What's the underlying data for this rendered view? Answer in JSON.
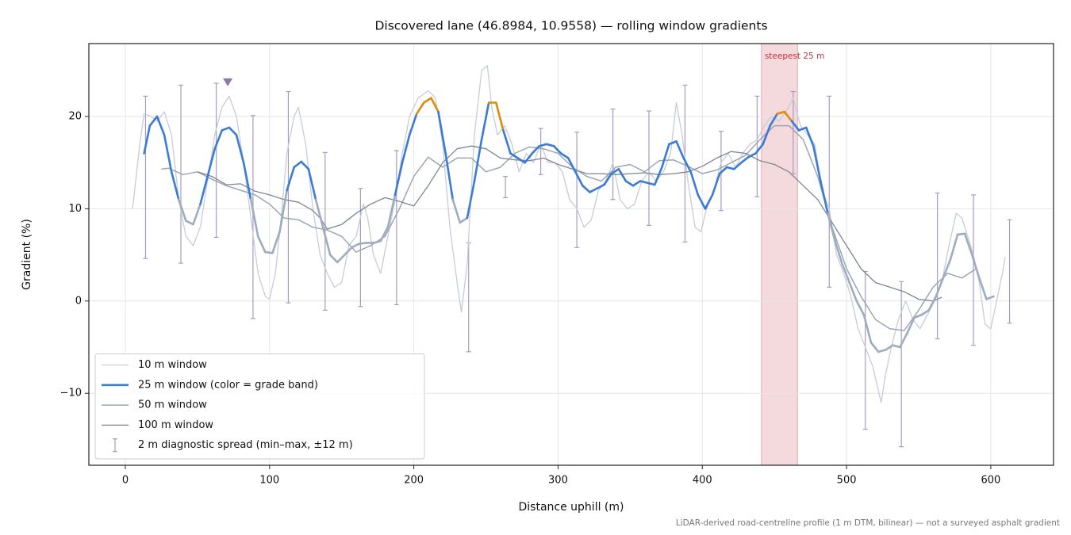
{
  "chart_data": {
    "type": "line",
    "title": "Discovered lane (46.8984, 10.9558) — rolling window gradients",
    "xlabel": "Distance uphill (m)",
    "ylabel": "Gradient (%)",
    "note": "LiDAR-derived road-centreline profile (1 m DTM, bilinear) — not a surveyed asphalt gradient",
    "xlim": [
      -25.3,
      643.5
    ],
    "ylim": [
      -17.8,
      27.9
    ],
    "xticks": [
      0,
      100,
      200,
      300,
      400,
      500,
      600
    ],
    "yticks": [
      {
        "value": -10,
        "label": "−10"
      },
      0,
      10,
      20
    ],
    "grid": true,
    "legend": "lower left",
    "highlight": {
      "label": "steepest 25 m",
      "range": [
        441,
        466
      ],
      "color": "#f4d9dd",
      "edge_color": "#e6aab2",
      "label_color": "#c8323c"
    },
    "marker": {
      "x": 71,
      "y": 23.7,
      "color": "#8a7aa8"
    },
    "series": [
      {
        "name": "10 m window",
        "color": "#c6cdd7",
        "width": 1.3,
        "x": [
          5,
          10,
          13,
          18,
          22,
          27,
          32,
          37,
          42,
          47,
          52,
          57,
          62,
          67,
          72,
          77,
          82,
          87,
          92,
          97,
          100,
          104,
          108,
          112,
          117,
          120,
          125,
          130,
          135,
          140,
          145,
          150,
          155,
          160,
          165,
          168,
          172,
          177,
          182,
          187,
          192,
          197,
          203,
          210,
          215,
          220,
          225,
          230,
          233,
          237,
          242,
          247,
          251,
          254,
          258,
          263,
          268,
          273,
          278,
          283,
          288,
          293,
          298,
          303,
          308,
          313,
          318,
          323,
          328,
          333,
          338,
          343,
          348,
          353,
          358,
          363,
          368,
          373,
          378,
          382,
          386,
          390,
          395,
          399,
          403,
          408,
          413,
          418,
          423,
          428,
          433,
          438,
          443,
          448,
          453,
          458,
          463,
          468,
          473,
          478,
          483,
          488,
          493,
          498,
          503,
          508,
          513,
          518,
          521,
          524,
          527,
          531,
          536,
          541,
          546,
          551,
          556,
          561,
          566,
          571,
          576,
          580,
          584,
          588,
          592,
          596,
          600,
          604,
          608,
          610
        ],
        "values": [
          10,
          17,
          20.3,
          20,
          19.5,
          20.5,
          18,
          11,
          7,
          6,
          8,
          13,
          18,
          21,
          22.2,
          20,
          15,
          9,
          3,
          0.5,
          0.2,
          3,
          9,
          16,
          20,
          21,
          17,
          10,
          5,
          3,
          1.5,
          2,
          6,
          7,
          10.5,
          9,
          5,
          3,
          7,
          11,
          16,
          20,
          22,
          22.8,
          22,
          17,
          8,
          2,
          -1.2,
          4,
          18,
          25,
          25.5,
          21,
          18,
          19,
          17,
          14,
          16,
          15,
          17,
          15,
          15,
          14,
          11,
          10,
          8,
          8.8,
          12,
          13,
          15,
          11,
          10,
          10.5,
          13,
          14,
          13,
          14,
          16,
          21.5,
          18,
          13,
          8,
          7.5,
          10,
          12,
          15,
          16,
          14.5,
          16,
          17,
          17.5,
          19,
          20,
          19.5,
          20.5,
          22,
          19,
          18,
          17,
          12,
          10,
          5,
          3,
          0.5,
          -3,
          -5,
          -7,
          -9,
          -11,
          -8,
          -5,
          -2,
          0,
          -2,
          -3,
          -1.5,
          0,
          2,
          6,
          9.5,
          9,
          7,
          5,
          2,
          -2.5,
          -3,
          0,
          3,
          4.8
        ]
      },
      {
        "name": "25 m window (color = grade band)",
        "color": "#3a7bd5",
        "width": 2.6,
        "grade_bands": [
          {
            "max": 10,
            "color": "#9dacbe"
          },
          {
            "max": 20,
            "color": "#3a7bd5"
          },
          {
            "color": "#e08a0b"
          }
        ],
        "x": [
          13,
          17,
          22,
          27,
          32,
          37,
          42,
          47,
          52,
          57,
          62,
          67,
          72,
          77,
          82,
          87,
          92,
          97,
          102,
          107,
          112,
          117,
          122,
          127,
          132,
          137,
          142,
          147,
          152,
          157,
          162,
          167,
          172,
          177,
          182,
          187,
          192,
          197,
          202,
          207,
          212,
          217,
          222,
          227,
          232,
          237,
          242,
          247,
          252,
          257,
          262,
          267,
          272,
          277,
          282,
          287,
          292,
          297,
          302,
          307,
          312,
          317,
          322,
          327,
          332,
          337,
          342,
          347,
          352,
          357,
          362,
          367,
          372,
          377,
          382,
          387,
          392,
          397,
          402,
          407,
          412,
          417,
          422,
          427,
          432,
          437,
          442,
          447,
          452,
          457,
          462,
          467,
          472,
          477,
          482,
          487,
          492,
          497,
          502,
          507,
          512,
          517,
          522,
          527,
          532,
          537,
          542,
          547,
          552,
          557,
          562,
          567,
          572,
          577,
          582,
          587,
          592,
          597,
          602
        ],
        "values": [
          16,
          19,
          20,
          18,
          14,
          11,
          8.7,
          8.3,
          10.5,
          13.5,
          16.5,
          18.5,
          18.8,
          18,
          15,
          11,
          7,
          5.3,
          5.2,
          7.5,
          12,
          14.5,
          15.1,
          14.3,
          11,
          8,
          5,
          4.2,
          5,
          5.8,
          6.2,
          6.3,
          6.3,
          6.5,
          8,
          11.5,
          15,
          18,
          20.3,
          21.5,
          22,
          20.5,
          16,
          11,
          8.5,
          9,
          13,
          17.5,
          21.5,
          21.5,
          18.5,
          16,
          15.5,
          15,
          16,
          16.8,
          17,
          16.8,
          16,
          15.5,
          14,
          12.5,
          11.8,
          12.2,
          12.6,
          13.8,
          14.3,
          13,
          12.5,
          13,
          12.8,
          12.6,
          14.5,
          17,
          17.3,
          15.5,
          14,
          11.5,
          10,
          11.5,
          13.8,
          14.5,
          14.3,
          15,
          15.6,
          16,
          17,
          19,
          20.3,
          20.5,
          19.5,
          18.5,
          18.8,
          16.8,
          13,
          9.5,
          6.5,
          4,
          2,
          0,
          -1.5,
          -4.5,
          -5.5,
          -5.3,
          -4.8,
          -5,
          -3.5,
          -1.8,
          -1.5,
          -1,
          0.5,
          2.5,
          4.5,
          7.2,
          7.3,
          5,
          2.5,
          0.2,
          0.5
        ]
      },
      {
        "name": "50 m window",
        "color": "#9ba6b4",
        "width": 1.5,
        "x": [
          25,
          30,
          40,
          50,
          60,
          70,
          80,
          90,
          100,
          110,
          120,
          130,
          140,
          150,
          160,
          170,
          180,
          190,
          200,
          210,
          220,
          230,
          240,
          250,
          260,
          270,
          280,
          290,
          300,
          310,
          320,
          330,
          340,
          350,
          360,
          370,
          380,
          390,
          400,
          410,
          420,
          430,
          440,
          450,
          460,
          470,
          480,
          490,
          500,
          510,
          520,
          530,
          540,
          550,
          560,
          570,
          580,
          590
        ],
        "values": [
          14.3,
          14.4,
          13.7,
          14,
          13.2,
          12.5,
          12,
          11.5,
          10.5,
          9,
          8.8,
          8,
          7.7,
          7,
          5.3,
          6,
          7,
          10,
          13.5,
          15.6,
          14.5,
          15.5,
          15.5,
          14,
          14.5,
          16,
          16.7,
          16.5,
          16,
          14.5,
          13.5,
          13,
          14.5,
          14.8,
          14,
          15.2,
          15.3,
          14.6,
          13.8,
          14.2,
          15,
          15.8,
          17.5,
          19,
          19,
          17.5,
          13.5,
          8,
          3.5,
          0.5,
          -2,
          -3,
          -3.2,
          -1,
          1.5,
          3,
          2.5,
          3.5
        ]
      },
      {
        "name": "100 m window",
        "color": "#7d8696",
        "width": 1.3,
        "x": [
          50,
          60,
          70,
          80,
          90,
          100,
          110,
          120,
          130,
          135,
          140,
          150,
          160,
          170,
          180,
          190,
          200,
          210,
          220,
          230,
          240,
          250,
          260,
          270,
          280,
          290,
          300,
          310,
          320,
          330,
          340,
          350,
          360,
          370,
          380,
          390,
          400,
          410,
          420,
          430,
          440,
          450,
          460,
          470,
          480,
          490,
          500,
          510,
          520,
          530,
          540,
          550,
          560,
          566
        ],
        "values": [
          14,
          13.5,
          12.6,
          12.7,
          11.9,
          11.5,
          11,
          10.7,
          9.8,
          9,
          7.8,
          8.3,
          9.5,
          10.5,
          11.2,
          10.8,
          10.3,
          12.5,
          15,
          16.5,
          16.8,
          16.5,
          15.5,
          15.3,
          15.2,
          15.5,
          14.8,
          14.3,
          13.8,
          13.8,
          13.7,
          13.8,
          13.9,
          13.7,
          13.8,
          14,
          14.6,
          15.5,
          16.2,
          16,
          15.2,
          14.8,
          14,
          12.5,
          11,
          8.5,
          6,
          3.5,
          2,
          1.5,
          1,
          0.2,
          0,
          0.4
        ]
      }
    ],
    "errorbars": {
      "name": "2 m diagnostic spread (min–max, ±12 m)",
      "color": "#a59cc0",
      "x": [
        14,
        38.5,
        63,
        88.5,
        113,
        138.5,
        163,
        188,
        238,
        263.5,
        288,
        313,
        338,
        363,
        388,
        413,
        438,
        463,
        488,
        513,
        538,
        563,
        588,
        613
      ],
      "low": [
        4.6,
        4.1,
        6.9,
        -1.9,
        -0.2,
        -1.0,
        -0.6,
        -0.4,
        -5.5,
        11.2,
        13.7,
        5.8,
        11,
        8.2,
        6.4,
        9.8,
        11.3,
        13.8,
        1.5,
        -13.9,
        -15.8,
        -4.1,
        -4.8,
        -2.4
      ],
      "high": [
        22.2,
        23.4,
        23.6,
        20.1,
        22.7,
        16.1,
        12.2,
        16.3,
        6.3,
        13.5,
        18.7,
        18.3,
        20.8,
        20.6,
        23.4,
        18.4,
        22.2,
        22.7,
        22.2,
        3.2,
        2.1,
        11.7,
        11.5,
        8.8
      ]
    }
  }
}
